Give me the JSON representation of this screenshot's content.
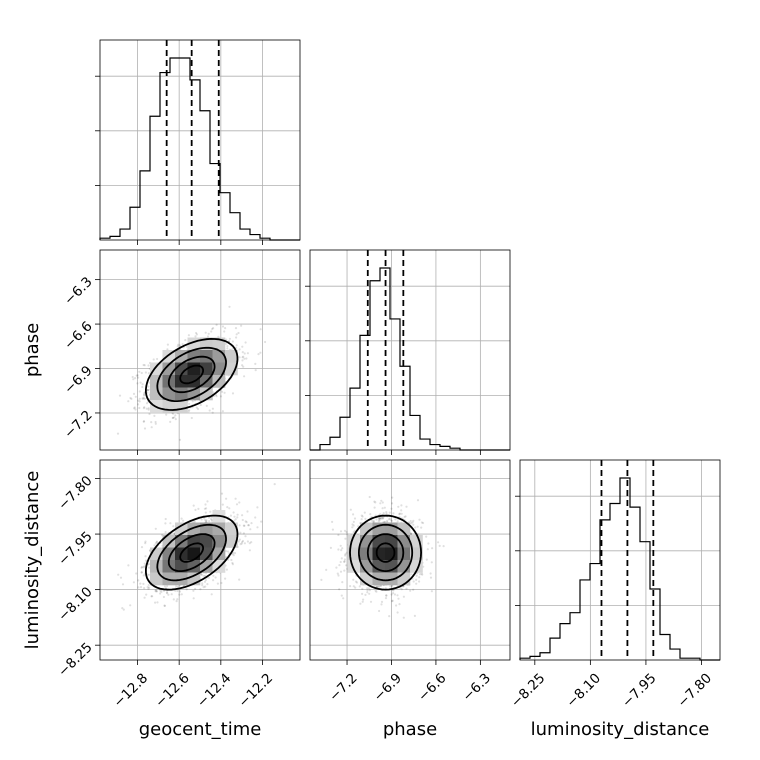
{
  "chart_data": {
    "type": "corner",
    "parameters": [
      {
        "key": "geocent_time",
        "label": "geocent_time",
        "range": [
          -12.98,
          -12.02
        ],
        "ticks": [
          -12.8,
          -12.6,
          -12.4,
          -12.2
        ],
        "tick_labels": [
          "−12.8",
          "−12.6",
          "−12.4",
          "−12.2"
        ],
        "quantiles": [
          -12.66,
          -12.54,
          -12.41
        ],
        "median": -12.54,
        "std": 0.11
      },
      {
        "key": "phase",
        "label": "phase",
        "range": [
          -7.45,
          -6.1
        ],
        "ticks": [
          -7.2,
          -6.9,
          -6.6,
          -6.3
        ],
        "tick_labels": [
          "−7.2",
          "−6.9",
          "−6.6",
          "−6.3"
        ],
        "quantiles": [
          -7.06,
          -6.94,
          -6.82
        ],
        "median": -6.94,
        "std": 0.12
      },
      {
        "key": "luminosity_distance",
        "label": "luminosity_distance",
        "range": [
          -8.29,
          -7.75
        ],
        "ticks": [
          -8.25,
          -8.1,
          -7.95,
          -7.8
        ],
        "tick_labels": [
          "−8.25",
          "−8.10",
          "−7.95",
          "−7.80"
        ],
        "quantiles": [
          -8.07,
          -8.0,
          -7.93
        ],
        "median": -8.0,
        "std": 0.05
      }
    ],
    "histograms": {
      "geocent_time": {
        "bin_edges": [
          -12.98,
          -12.932,
          -12.884,
          -12.836,
          -12.788,
          -12.74,
          -12.692,
          -12.644,
          -12.596,
          -12.548,
          -12.5,
          -12.452,
          -12.404,
          -12.356,
          -12.308,
          -12.26,
          -12.212,
          -12.164,
          -12.116,
          -12.068,
          -12.02
        ],
        "counts": [
          1,
          2,
          6,
          18,
          38,
          68,
          92,
          100,
          100,
          88,
          71,
          42,
          26,
          15,
          6,
          3,
          1,
          0,
          0,
          0
        ]
      },
      "phase": {
        "bin_edges": [
          -7.45,
          -7.3825,
          -7.315,
          -7.2475,
          -7.18,
          -7.1125,
          -7.045,
          -6.9775,
          -6.91,
          -6.8425,
          -6.775,
          -6.7075,
          -6.64,
          -6.5725,
          -6.505,
          -6.4375,
          -6.37,
          -6.3025,
          -6.235,
          -6.1675,
          -6.1
        ],
        "counts": [
          0,
          3,
          7,
          18,
          34,
          63,
          93,
          100,
          72,
          46,
          19,
          6,
          3,
          2,
          1,
          0,
          0,
          0,
          0,
          0
        ]
      },
      "luminosity_distance": {
        "bin_edges": [
          -8.29,
          -8.263,
          -8.236,
          -8.209,
          -8.182,
          -8.155,
          -8.128,
          -8.101,
          -8.074,
          -8.047,
          -8.02,
          -7.993,
          -7.966,
          -7.939,
          -7.912,
          -7.885,
          -7.858,
          -7.831,
          -7.804,
          -7.777,
          -7.75
        ],
        "counts": [
          1,
          2,
          4,
          12,
          20,
          26,
          44,
          53,
          77,
          86,
          100,
          84,
          65,
          39,
          14,
          6,
          1,
          1,
          0,
          0
        ]
      }
    },
    "correlations": {
      "geocent_time|phase": 0.45,
      "geocent_time|luminosity_distance": 0.5,
      "phase|luminosity_distance": 0.0
    },
    "contour_levels_sigma": [
      0.5,
      1.0,
      1.5,
      2.0
    ],
    "grid": true
  }
}
